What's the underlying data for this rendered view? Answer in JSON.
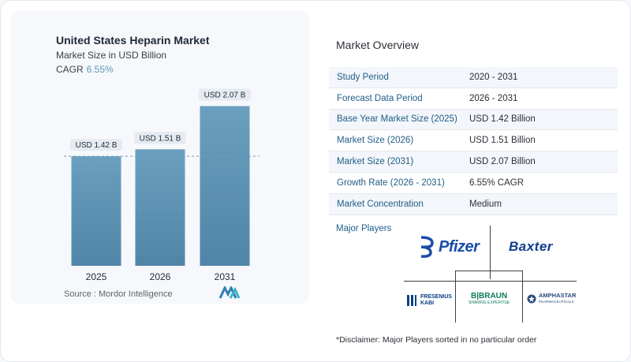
{
  "chart_data": {
    "type": "bar",
    "title": "United States Heparin Market",
    "subtitle": "Market Size in USD Billion",
    "cagr_label": "CAGR",
    "cagr_value": "6.55%",
    "categories": [
      "2025",
      "2026",
      "2031"
    ],
    "values": [
      1.42,
      1.51,
      2.07
    ],
    "data_labels": [
      "USD 1.42 B",
      "USD 1.51 B",
      "USD 2.07 B"
    ],
    "ylim": [
      0,
      2.3
    ],
    "reference_line": 1.42,
    "colors": {
      "bar_top": "#6b9fbf",
      "bar_bottom": "#4f85a8",
      "label_bg": "#e6ebf1",
      "reference_line": "#7a9bb3"
    }
  },
  "source": "Source :  Mordor Intelligence",
  "overview": {
    "title": "Market Overview",
    "rows": [
      {
        "label": "Study Period",
        "value": "2020 - 2031"
      },
      {
        "label": "Forecast Data Period",
        "value": "2026 - 2031"
      },
      {
        "label": "Base Year Market Size (2025)",
        "value": "USD 1.42 Billion"
      },
      {
        "label": "Market Size (2026)",
        "value": "USD 1.51 Billion"
      },
      {
        "label": "Market Size (2031)",
        "value": "USD 2.07 Billion"
      },
      {
        "label": "Growth Rate (2026 - 2031)",
        "value": "6.55% CAGR"
      },
      {
        "label": "Market Concentration",
        "value": "Medium"
      }
    ]
  },
  "players": {
    "label": "Major Players",
    "pfizer": "Pfizer",
    "baxter": "Baxter",
    "fresenius_line1": "FRESENIUS",
    "fresenius_line2": "KABI",
    "braun": "B|BRAUN",
    "braun_sub": "SHARING EXPERTISE",
    "amphastar": "AMPHASTAR",
    "amphastar_sub": "PHARMACEUTICALS"
  },
  "disclaimer": "*Disclaimer: Major Players sorted in no particular order"
}
